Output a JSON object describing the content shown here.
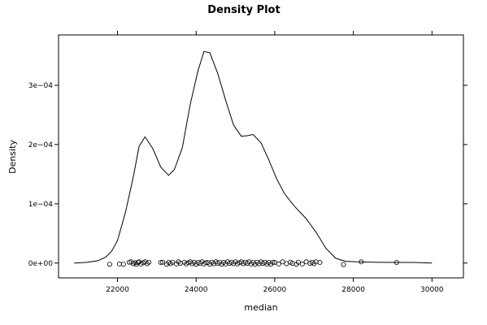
{
  "chart_data": {
    "type": "line",
    "title": "Density Plot",
    "xlabel": "median",
    "ylabel": "Density",
    "xlim": [
      20500,
      30800
    ],
    "ylim": [
      -2.5e-05,
      0.000385
    ],
    "x_ticks": [
      22000,
      24000,
      26000,
      28000,
      30000
    ],
    "x_tick_labels": [
      "22000",
      "24000",
      "26000",
      "28000",
      "30000"
    ],
    "y_ticks": [
      0,
      0.0001,
      0.0002,
      0.0003
    ],
    "y_tick_labels": [
      "0e+00",
      "1e−04",
      "2e−04",
      "3e−04"
    ],
    "grid": false,
    "series": [
      {
        "kind": "density-curve",
        "x": [
          20900,
          21200,
          21500,
          21700,
          21850,
          22000,
          22200,
          22400,
          22550,
          22700,
          22900,
          23100,
          23300,
          23450,
          23650,
          23850,
          24050,
          24200,
          24350,
          24550,
          24750,
          24950,
          25150,
          25300,
          25450,
          25650,
          25850,
          26050,
          26250,
          26500,
          26800,
          27050,
          27300,
          27550,
          27800,
          28100,
          28500,
          29000,
          29500,
          30000
        ],
        "y": [
          0,
          1e-06,
          4e-06,
          1e-05,
          2e-05,
          3.8e-05,
          8.5e-05,
          0.000145,
          0.000197,
          0.000213,
          0.000193,
          0.000162,
          0.000148,
          0.000158,
          0.000195,
          0.000268,
          0.000325,
          0.000357,
          0.000355,
          0.00032,
          0.000275,
          0.000233,
          0.000214,
          0.000215,
          0.000217,
          0.000203,
          0.000174,
          0.000142,
          0.000117,
          9.6e-05,
          7.5e-05,
          5.2e-05,
          2.5e-05,
          8e-06,
          3e-06,
          2e-06,
          1.5e-06,
          1e-06,
          1e-06,
          0
        ]
      },
      {
        "kind": "rug-points",
        "x": [
          21800,
          22050,
          22150,
          22300,
          22350,
          22400,
          22450,
          22480,
          22520,
          22550,
          22600,
          22650,
          22700,
          22750,
          22800,
          23100,
          23150,
          23250,
          23300,
          23350,
          23400,
          23500,
          23550,
          23600,
          23700,
          23750,
          23800,
          23850,
          23900,
          23950,
          24000,
          24050,
          24100,
          24150,
          24200,
          24250,
          24300,
          24350,
          24400,
          24450,
          24500,
          24550,
          24600,
          24650,
          24700,
          24750,
          24800,
          24850,
          24900,
          24950,
          25000,
          25050,
          25100,
          25150,
          25200,
          25250,
          25300,
          25350,
          25400,
          25450,
          25500,
          25550,
          25600,
          25650,
          25700,
          25750,
          25800,
          25850,
          25900,
          25950,
          26000,
          26100,
          26200,
          26300,
          26400,
          26450,
          26550,
          26600,
          26700,
          26800,
          26900,
          26950,
          27000,
          27050,
          27150,
          27750,
          28200,
          29100
        ],
        "y": [
          -2e-06,
          -1.5e-06,
          -2e-06,
          1.5e-06,
          2e-06,
          -1e-06,
          5e-07,
          -2e-06,
          1e-06,
          2e-06,
          -1.5e-06,
          5e-07,
          2e-06,
          -1e-06,
          1.5e-06,
          1e-06,
          1.5e-06,
          -2e-06,
          1e-06,
          -1e-06,
          1.5e-06,
          -1.5e-06,
          2e-06,
          -5e-07,
          1.5e-06,
          -1.5e-06,
          5e-07,
          2e-06,
          -1e-06,
          1.5e-06,
          -2e-06,
          1e-06,
          -5e-07,
          2e-06,
          -1.5e-06,
          5e-07,
          1e-06,
          -2e-06,
          1.5e-06,
          -1e-06,
          2e-06,
          -5e-07,
          1.5e-06,
          -2e-06,
          1e-06,
          -1.5e-06,
          2e-06,
          -5e-07,
          1.5e-06,
          -1e-06,
          2e-06,
          -1.5e-06,
          5e-07,
          2e-06,
          -1e-06,
          1.5e-06,
          -5e-07,
          2e-06,
          -1.5e-06,
          1e-06,
          -2e-06,
          1.5e-06,
          -1e-06,
          2e-06,
          -5e-07,
          1.5e-06,
          -1.5e-06,
          1e-06,
          -2e-06,
          1.5e-06,
          1e-06,
          -1.5e-06,
          2e-06,
          -1e-06,
          1.5e-06,
          -5e-07,
          -2e-06,
          1.5e-06,
          -1.5e-06,
          2e-06,
          -5e-07,
          1.5e-06,
          -1e-06,
          2e-06,
          1e-06,
          -2.5e-06,
          2e-06,
          1e-06
        ]
      }
    ]
  }
}
